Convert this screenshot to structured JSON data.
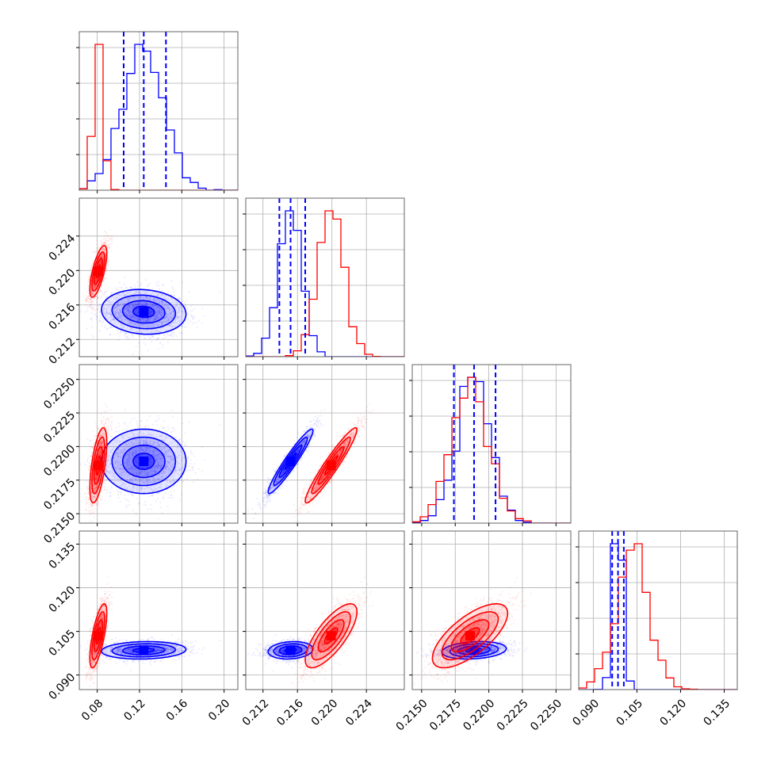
{
  "chart_data": {
    "type": "corner",
    "colors": {
      "series_a": "#ff0000",
      "series_b": "#0000ff",
      "grid": "#b0b0b0",
      "frame": "#555555"
    },
    "grid": true,
    "params": [
      {
        "range": [
          0.063,
          0.213
        ],
        "ticks": [
          "0.08",
          "0.12",
          "0.16",
          "0.20"
        ],
        "tick_values": [
          0.08,
          0.12,
          0.16,
          0.2
        ]
      },
      {
        "range": [
          0.21,
          0.2284
        ],
        "ticks": [
          "0.212",
          "0.216",
          "0.220",
          "0.224"
        ],
        "tick_values": [
          0.212,
          0.216,
          0.22,
          0.224
        ]
      },
      {
        "range": [
          0.2143,
          0.2261
        ],
        "ticks": [
          "0.2150",
          "0.2175",
          "0.2200",
          "0.2225",
          "0.2250"
        ],
        "tick_values": [
          0.215,
          0.2175,
          0.22,
          0.2225,
          0.225
        ]
      },
      {
        "range": [
          0.085,
          0.1395
        ],
        "ticks": [
          "0.090",
          "0.105",
          "0.120",
          "0.135"
        ],
        "tick_values": [
          0.09,
          0.105,
          0.12,
          0.135
        ]
      }
    ],
    "series": [
      {
        "color": "#0000ff",
        "means": [
          0.124,
          0.2152,
          0.2189,
          0.0985
        ],
        "sds": [
          0.02,
          0.0013,
          0.0012,
          0.0015
        ],
        "quantiles": [
          [
            0.105,
            0.124,
            0.145
          ],
          [
            0.2139,
            0.2152,
            0.2169
          ],
          [
            0.2174,
            0.2189,
            0.2205
          ],
          [
            0.0965,
            0.0985,
            0.1005
          ]
        ],
        "corr": [
          [
            1,
            -0.1,
            0,
            0.1
          ],
          [
            -0.1,
            1,
            0.95,
            0.15
          ],
          [
            0,
            0.95,
            1,
            0.2
          ],
          [
            0.1,
            0.15,
            0.2,
            1
          ]
        ]
      },
      {
        "color": "#ff0000",
        "means": [
          0.081,
          0.2199,
          0.2186,
          0.1035
        ],
        "sds": [
          0.004,
          0.0015,
          0.0014,
          0.0055
        ],
        "corr": [
          [
            1,
            0.7,
            0.6,
            0.7
          ],
          [
            0.7,
            1,
            0.95,
            0.75
          ],
          [
            0.6,
            0.95,
            1,
            0.7
          ],
          [
            0.7,
            0.75,
            0.7,
            1
          ]
        ]
      }
    ]
  }
}
